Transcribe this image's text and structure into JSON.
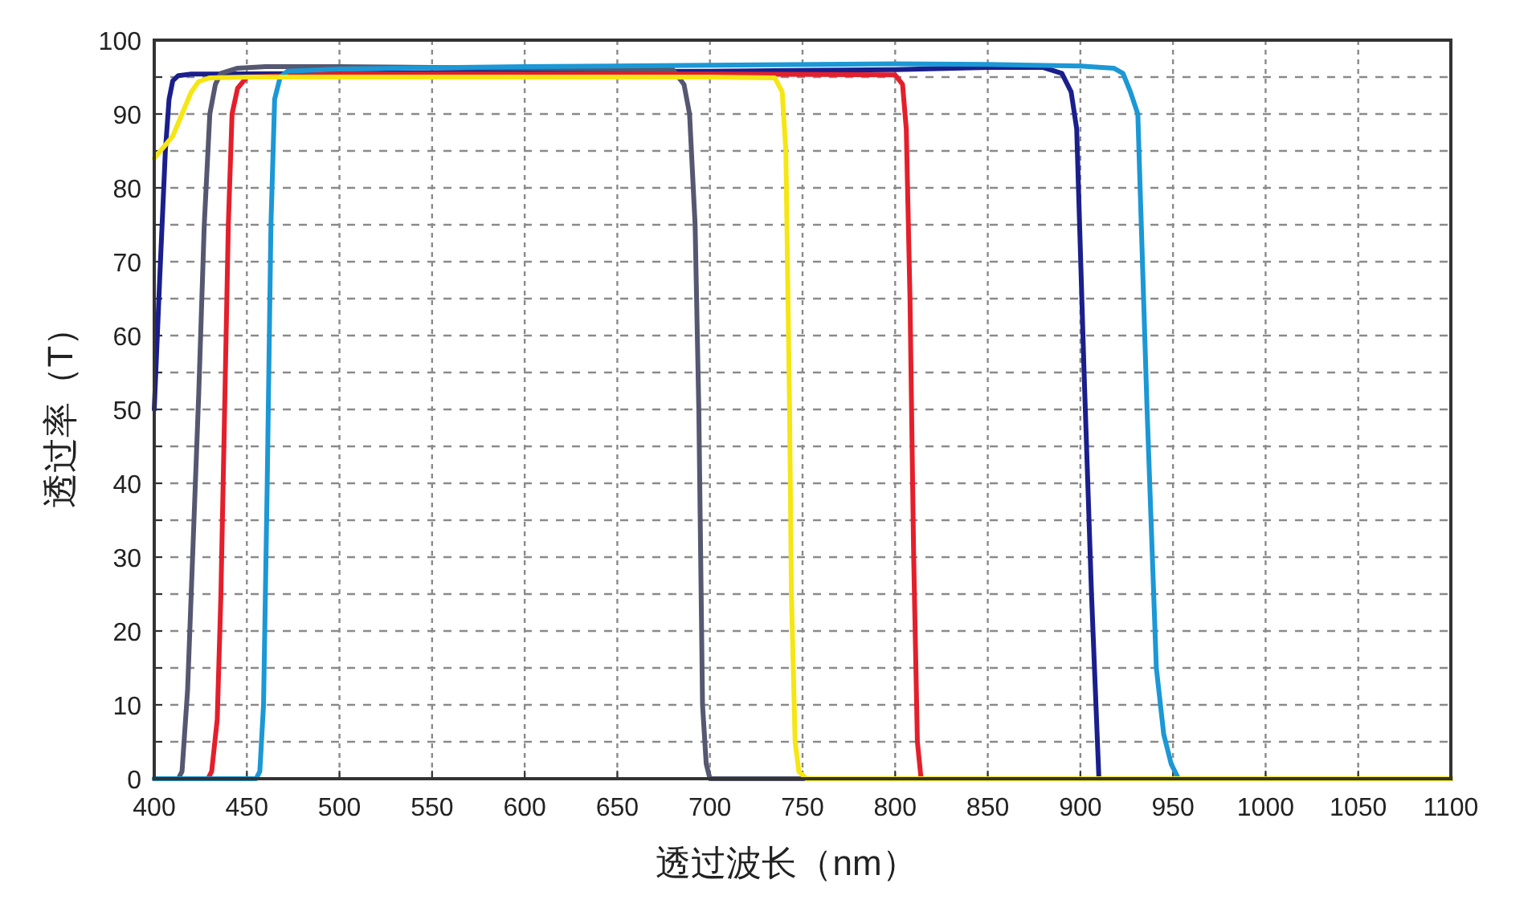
{
  "chart_data": {
    "type": "line",
    "xlabel": "透过波长（nm）",
    "ylabel": "透过率（T）",
    "xlim": [
      400,
      1100
    ],
    "ylim": [
      0,
      100
    ],
    "xticks": [
      400,
      450,
      500,
      550,
      600,
      650,
      700,
      750,
      800,
      850,
      900,
      950,
      1000,
      1050,
      1100
    ],
    "yticks": [
      0,
      {
        "value": 5,
        "label": null
      },
      10,
      {
        "value": 15,
        "label": null
      },
      20,
      {
        "value": 25,
        "label": null
      },
      30,
      {
        "value": 35,
        "label": null
      },
      40,
      {
        "value": 45,
        "label": null
      },
      50,
      {
        "value": 55,
        "label": null
      },
      60,
      {
        "value": 65,
        "label": null
      },
      70,
      {
        "value": 75,
        "label": null
      },
      80,
      {
        "value": 85,
        "label": null
      },
      90,
      {
        "value": 95,
        "label": null
      },
      100
    ],
    "grid": true,
    "series": [
      {
        "color": "#1a1f8c",
        "x": [
          400,
          403,
          406,
          408,
          410,
          413,
          420,
          500,
          600,
          700,
          800,
          850,
          880,
          890,
          895,
          898,
          902,
          906,
          910,
          915,
          1100
        ],
        "values": [
          50,
          68,
          85,
          92,
          94.5,
          95.2,
          95.4,
          95.5,
          95.7,
          95.8,
          96,
          96.3,
          96.3,
          95.5,
          93,
          88,
          55,
          25,
          0,
          0,
          0
        ]
      },
      {
        "color": "#555870",
        "x": [
          400,
          413,
          415,
          418,
          421,
          424,
          427,
          430,
          433,
          436,
          445,
          460,
          500,
          600,
          680,
          686,
          689,
          692,
          694,
          696,
          698,
          700,
          1100
        ],
        "values": [
          0,
          0,
          1,
          12,
          32,
          52,
          75,
          90,
          94,
          95.5,
          96.2,
          96.4,
          96.4,
          96.2,
          96,
          94,
          90,
          75,
          50,
          10,
          2,
          0,
          0
        ]
      },
      {
        "color": "#e41f2b",
        "x": [
          400,
          429,
          431,
          434,
          436,
          438,
          440,
          442,
          445,
          450,
          500,
          600,
          700,
          800,
          804,
          806,
          808,
          810,
          812,
          814,
          1100
        ],
        "values": [
          0,
          0,
          1,
          8,
          25,
          50,
          75,
          90,
          93.5,
          95,
          95.4,
          95.4,
          95.4,
          95.3,
          94,
          88,
          65,
          30,
          5,
          0,
          0
        ]
      },
      {
        "color": "#1b98d5",
        "x": [
          400,
          455,
          457,
          459,
          461,
          463,
          465,
          468,
          472,
          500,
          600,
          700,
          800,
          850,
          900,
          918,
          923,
          927,
          931,
          936,
          941,
          945,
          949,
          953,
          960,
          1100
        ],
        "values": [
          0,
          0,
          1,
          10,
          40,
          75,
          92,
          95,
          95.8,
          96.1,
          96.4,
          96.6,
          96.8,
          96.7,
          96.5,
          96.2,
          95.5,
          93,
          90,
          50,
          15,
          6,
          2,
          0,
          0,
          0
        ]
      },
      {
        "color": "#f5e614",
        "x": [
          400,
          405,
          410,
          415,
          420,
          424,
          430,
          450,
          500,
          600,
          700,
          735,
          739,
          741,
          743,
          744,
          746,
          748,
          752,
          1100
        ],
        "values": [
          84,
          85.5,
          87,
          90,
          93,
          94.4,
          94.9,
          95,
          95,
          95,
          95,
          94.9,
          93,
          85,
          50,
          25,
          5,
          1,
          0,
          0
        ]
      }
    ]
  }
}
